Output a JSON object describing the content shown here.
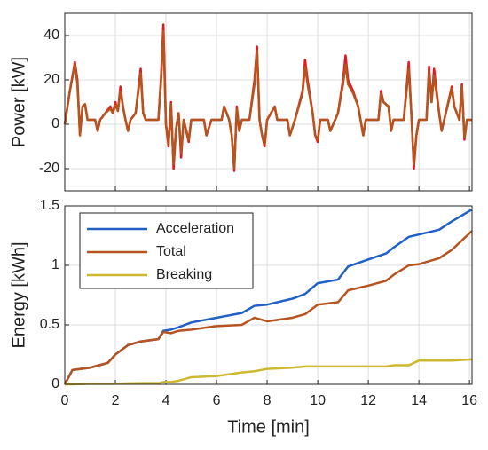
{
  "chart_data": [
    {
      "type": "line",
      "ylabel": "Power [kW]",
      "xlim": [
        0,
        16.1
      ],
      "ylim": [
        -30,
        50
      ],
      "xticks": [
        0,
        2,
        4,
        6,
        8,
        10,
        12,
        14,
        16
      ],
      "yticks": [
        -20,
        0,
        20,
        40
      ],
      "grid": true,
      "x": [
        0,
        0.2,
        0.4,
        0.5,
        0.6,
        0.7,
        0.8,
        0.9,
        1.2,
        1.3,
        1.4,
        1.6,
        1.8,
        1.9,
        2.0,
        2.1,
        2.2,
        2.3,
        2.4,
        2.5,
        2.6,
        2.8,
        2.9,
        3.0,
        3.1,
        3.2,
        3.7,
        3.8,
        3.9,
        4.0,
        4.1,
        4.2,
        4.3,
        4.4,
        4.5,
        4.6,
        4.7,
        4.9,
        5.0,
        5.5,
        5.6,
        5.8,
        6.2,
        6.3,
        6.5,
        6.6,
        6.7,
        6.8,
        6.9,
        7.0,
        7.3,
        7.5,
        7.6,
        7.7,
        7.8,
        7.9,
        8.0,
        8.3,
        8.4,
        8.8,
        8.9,
        9.1,
        9.4,
        9.5,
        9.6,
        9.8,
        9.9,
        10.0,
        10.1,
        10.4,
        10.5,
        10.8,
        11.0,
        11.1,
        11.2,
        11.4,
        11.6,
        11.8,
        11.9,
        12.4,
        12.5,
        12.6,
        12.8,
        12.9,
        13.0,
        13.4,
        13.6,
        13.7,
        13.8,
        13.9,
        14.0,
        14.3,
        14.4,
        14.5,
        14.6,
        14.8,
        14.9,
        15.0,
        15.3,
        15.4,
        15.6,
        15.7,
        15.8,
        15.9,
        16.1
      ],
      "series": [
        {
          "color": "#e8161c",
          "values": [
            0,
            15,
            28,
            20,
            -5,
            8,
            9,
            2,
            2,
            -3,
            2,
            5,
            8,
            5,
            10,
            6,
            17,
            8,
            2,
            -3,
            2,
            5,
            15,
            25,
            5,
            2,
            2,
            20,
            45,
            0,
            -10,
            10,
            -20,
            -2,
            5,
            -15,
            2,
            -8,
            2,
            2,
            -5,
            2,
            2,
            8,
            2,
            -5,
            -21,
            8,
            -3,
            2,
            2,
            20,
            35,
            2,
            -5,
            -10,
            2,
            8,
            2,
            2,
            -5,
            2,
            15,
            29,
            20,
            5,
            -5,
            -8,
            2,
            2,
            -3,
            5,
            20,
            31,
            20,
            15,
            8,
            -5,
            2,
            2,
            15,
            10,
            8,
            -3,
            2,
            2,
            28,
            5,
            -20,
            -5,
            2,
            2,
            26,
            10,
            25,
            5,
            -3,
            2,
            17,
            8,
            2,
            18,
            -7,
            2,
            2
          ]
        },
        {
          "color": "#b5541f",
          "values": [
            0,
            15,
            27,
            18,
            -5,
            8,
            9,
            2,
            2,
            -3,
            2,
            5,
            7,
            5,
            9,
            6,
            15,
            8,
            2,
            -3,
            2,
            5,
            14,
            23,
            5,
            2,
            2,
            18,
            42,
            0,
            -9,
            9,
            -18,
            -2,
            5,
            -13,
            2,
            -7,
            2,
            2,
            -5,
            2,
            2,
            8,
            2,
            -5,
            -20,
            7,
            -3,
            2,
            2,
            18,
            33,
            2,
            -5,
            -9,
            2,
            8,
            2,
            2,
            -5,
            2,
            14,
            26,
            18,
            5,
            -5,
            -7,
            2,
            2,
            -3,
            5,
            18,
            27,
            18,
            14,
            8,
            -5,
            2,
            2,
            14,
            10,
            8,
            -3,
            2,
            2,
            25,
            5,
            -18,
            -5,
            2,
            2,
            24,
            10,
            22,
            5,
            -3,
            2,
            16,
            8,
            2,
            17,
            -6,
            2,
            2
          ]
        }
      ]
    },
    {
      "type": "line",
      "xlabel": "Time [min]",
      "ylabel": "Energy [kWh]",
      "xlim": [
        0,
        16.1
      ],
      "ylim": [
        0,
        1.5
      ],
      "xticks": [
        0,
        2,
        4,
        6,
        8,
        10,
        12,
        14,
        16
      ],
      "yticks": [
        0,
        0.5,
        1,
        1.5
      ],
      "grid": true,
      "legend": "upper left",
      "x": [
        0,
        0.3,
        1,
        1.7,
        2,
        2.5,
        3,
        3.7,
        3.9,
        4.2,
        4.5,
        5,
        6,
        7,
        7.5,
        8,
        9,
        9.5,
        10,
        10.8,
        11.2,
        12,
        12.7,
        13,
        13.6,
        14,
        14.8,
        15.3,
        16.1
      ],
      "series": [
        {
          "name": "Acceleration",
          "color": "#2160c4",
          "values": [
            0,
            0.12,
            0.14,
            0.18,
            0.25,
            0.33,
            0.36,
            0.38,
            0.45,
            0.46,
            0.48,
            0.52,
            0.56,
            0.6,
            0.66,
            0.67,
            0.72,
            0.76,
            0.85,
            0.88,
            0.99,
            1.05,
            1.1,
            1.15,
            1.24,
            1.26,
            1.3,
            1.37,
            1.47
          ]
        },
        {
          "name": "Total",
          "color": "#b5541f",
          "values": [
            0,
            0.12,
            0.14,
            0.18,
            0.25,
            0.33,
            0.36,
            0.38,
            0.44,
            0.43,
            0.45,
            0.46,
            0.49,
            0.5,
            0.56,
            0.53,
            0.56,
            0.59,
            0.67,
            0.69,
            0.79,
            0.83,
            0.87,
            0.92,
            1.0,
            1.01,
            1.06,
            1.13,
            1.29
          ]
        },
        {
          "name": "Breaking",
          "color": "#cdb92f",
          "values": [
            0,
            0,
            0.005,
            0.005,
            0.005,
            0.008,
            0.01,
            0.01,
            0.02,
            0.02,
            0.03,
            0.06,
            0.07,
            0.1,
            0.11,
            0.13,
            0.14,
            0.15,
            0.15,
            0.15,
            0.15,
            0.15,
            0.15,
            0.16,
            0.16,
            0.2,
            0.2,
            0.2,
            0.21
          ]
        }
      ]
    }
  ]
}
